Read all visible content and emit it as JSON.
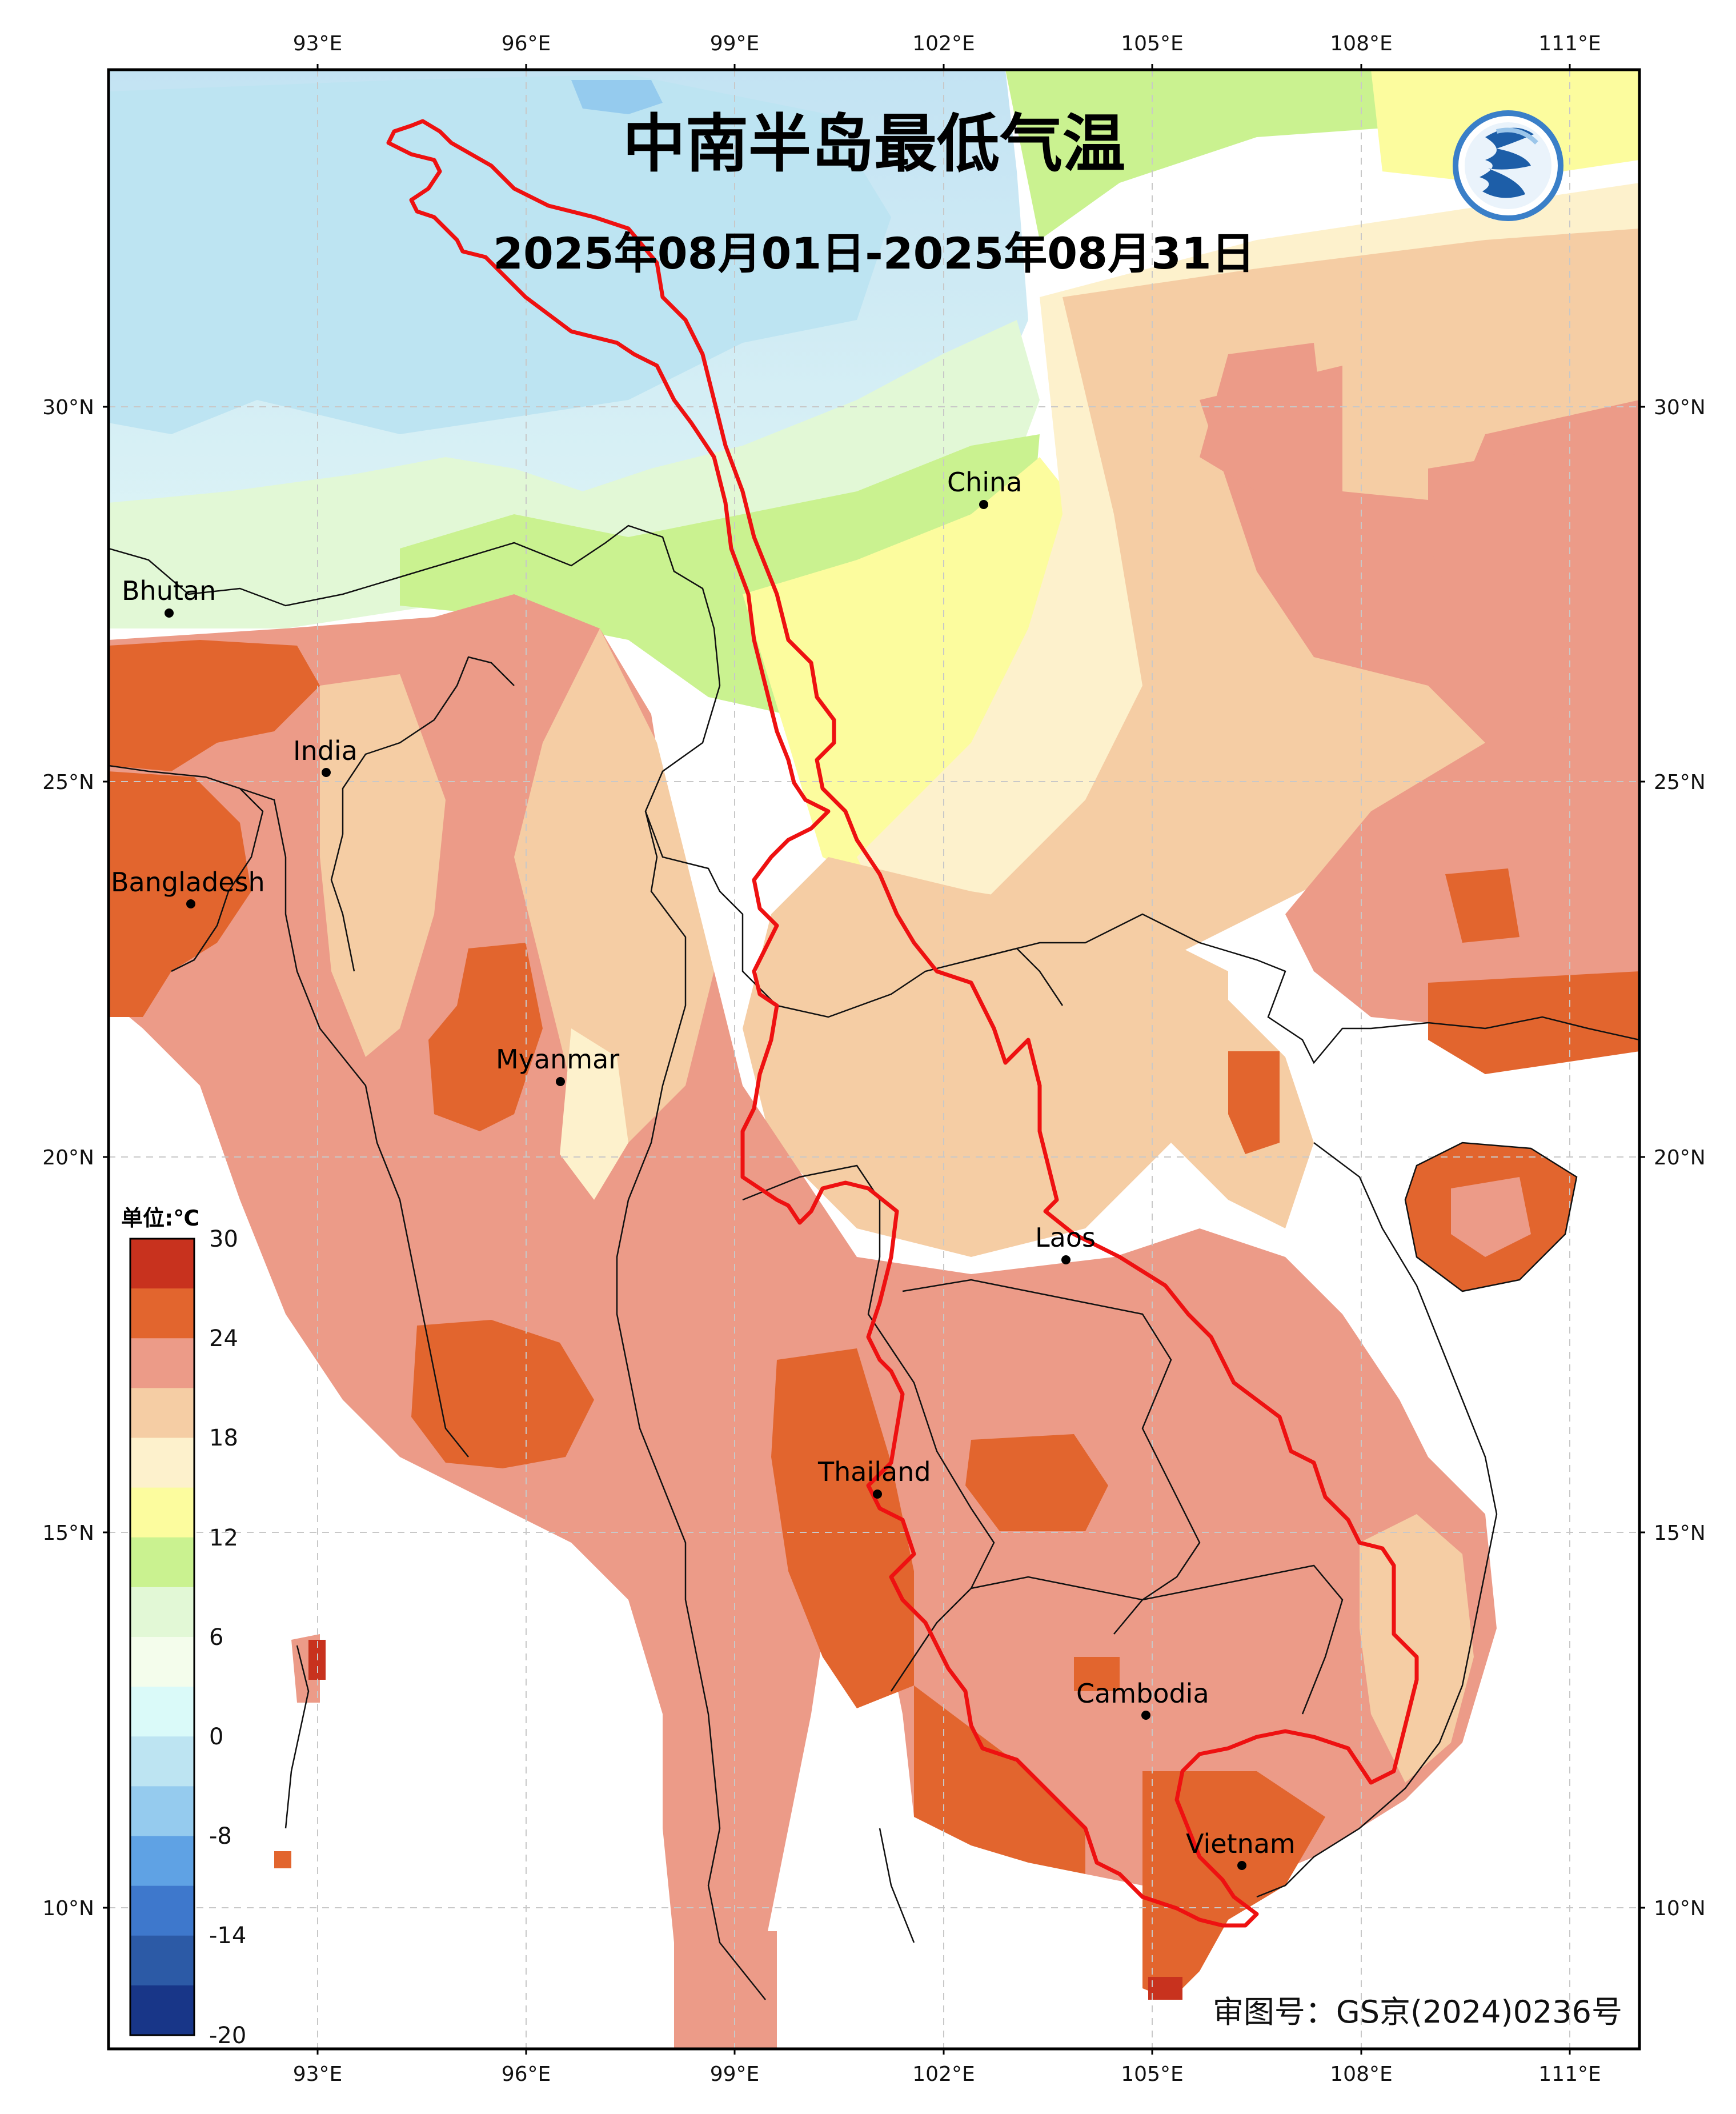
{
  "title": "中南半岛最低气温",
  "subtitle": "2025年08月01日-2025年08月31日",
  "approval_number": "审图号：GS京(2024)0236号",
  "logo": {
    "icon": "meteorological-logo-icon",
    "colors": [
      "#3a7fc8",
      "#1d5ea8",
      "#9cc6ea"
    ]
  },
  "axes": {
    "lon_ticks": [
      "93°E",
      "96°E",
      "99°E",
      "102°E",
      "105°E",
      "108°E",
      "111°E"
    ],
    "lat_ticks": [
      "30°N",
      "25°N",
      "20°N",
      "15°N",
      "10°N"
    ],
    "grid": true
  },
  "places": [
    {
      "name": "Bhutan"
    },
    {
      "name": "India"
    },
    {
      "name": "Bangladesh"
    },
    {
      "name": "China"
    },
    {
      "name": "Myanmar"
    },
    {
      "name": "Laos"
    },
    {
      "name": "Thailand"
    },
    {
      "name": "Cambodia"
    },
    {
      "name": "Vietnam"
    }
  ],
  "legend": {
    "unit": "单位:℃",
    "ticks": [
      "30",
      "24",
      "18",
      "12",
      "6",
      "0",
      "-8",
      "-14",
      "-20"
    ],
    "colors": [
      "#c8321e",
      "#e2652e",
      "#ec9b88",
      "#f5cda4",
      "#fdf1cc",
      "#fcfc9e",
      "#caf290",
      "#e2f8d6",
      "#f4fdec",
      "#dafaf9",
      "#bde4f2",
      "#95cbee",
      "#5fa2e4",
      "#3e78cc",
      "#2c5aa6",
      "#183688"
    ]
  },
  "colors": {
    "basin_boundary": "#ee1111",
    "country_border": "#111111",
    "gridline": "#c8c8c8"
  }
}
